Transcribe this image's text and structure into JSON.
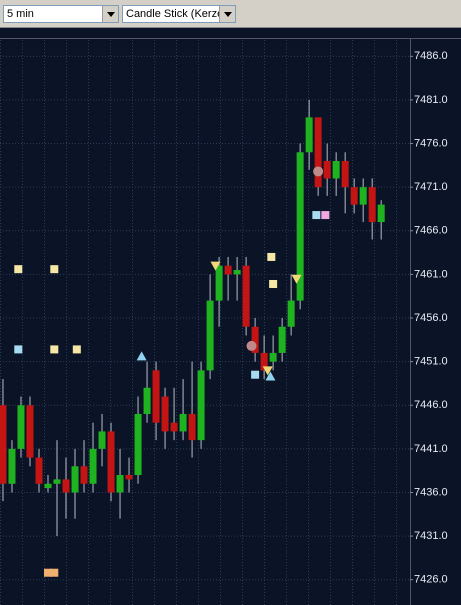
{
  "toolbar": {
    "interval": "5 min",
    "chart_style": "Candle Stick (Kerze"
  },
  "chart_data": {
    "type": "candlestick",
    "open": [
      7446,
      7437,
      7441,
      7446,
      7440,
      7436.5,
      7437,
      7437.5,
      7436,
      7439,
      7437,
      7441,
      7443,
      7436,
      7438,
      7438,
      7445,
      7450,
      7447,
      7444,
      7443,
      7445,
      7442,
      7450,
      7458,
      7462,
      7461,
      7462,
      7455,
      7452,
      7451,
      7452,
      7455,
      7458,
      7475,
      7479,
      7474,
      7472,
      7474,
      7471,
      7469,
      7471,
      7467
    ],
    "high": [
      7449,
      7442,
      7447,
      7447,
      7441,
      7438,
      7442,
      7440,
      7441,
      7442,
      7444,
      7445,
      7444,
      7441,
      7440,
      7447,
      7451,
      7451,
      7448,
      7448,
      7449,
      7451,
      7451,
      7461,
      7463,
      7463,
      7463,
      7463,
      7456,
      7454,
      7454,
      7456,
      7461,
      7476,
      7481,
      7479,
      7476,
      7475,
      7475,
      7472,
      7472,
      7472,
      7469.5
    ],
    "low": [
      7435,
      7436,
      7440,
      7439,
      7436,
      7436,
      7431,
      7433,
      7433,
      7436,
      7436,
      7439,
      7435,
      7433,
      7436,
      7437,
      7444,
      7442,
      7441,
      7442,
      7442,
      7440,
      7441,
      7449,
      7455,
      7458,
      7458,
      7454,
      7451,
      7449,
      7450,
      7451,
      7454,
      7457,
      7473,
      7470,
      7470,
      7470,
      7468,
      7468,
      7467,
      7465,
      7465
    ],
    "close": [
      7437,
      7441,
      7446,
      7440,
      7437,
      7437,
      7437.5,
      7436,
      7439,
      7437,
      7441,
      7443,
      7436,
      7438,
      7437.5,
      7445,
      7448,
      7444,
      7443,
      7443,
      7445,
      7442,
      7450,
      7458,
      7462,
      7461,
      7461.5,
      7455,
      7452,
      7450,
      7452,
      7455,
      7458,
      7475,
      7479,
      7471,
      7472,
      7474,
      7471,
      7469,
      7471,
      7467,
      7469
    ],
    "up_color": "#1fb41f",
    "down_color": "#c41414",
    "wick_color": "#b8bcc8",
    "markers": [
      {
        "shape": "square",
        "color": "#f6e7a6",
        "x": 1.7,
        "y": 7461.6
      },
      {
        "shape": "square",
        "color": "#f6e7a6",
        "x": 5.7,
        "y": 7461.6
      },
      {
        "shape": "square",
        "color": "#a6dcf2",
        "x": 1.7,
        "y": 7452.4
      },
      {
        "shape": "square",
        "color": "#f6e7a6",
        "x": 5.7,
        "y": 7452.4
      },
      {
        "shape": "square",
        "color": "#f6e7a6",
        "x": 8.2,
        "y": 7452.4
      },
      {
        "shape": "triangle-up",
        "color": "#8fd3f0",
        "x": 15.4,
        "y": 7451.6
      },
      {
        "shape": "triangle-down",
        "color": "#f0d878",
        "x": 23.6,
        "y": 7462.0
      },
      {
        "shape": "square",
        "color": "#f6e7a6",
        "x": 29.8,
        "y": 7463.0
      },
      {
        "shape": "square",
        "color": "#f6e7a6",
        "x": 30.0,
        "y": 7459.9
      },
      {
        "shape": "circle",
        "color": "#c08a8a",
        "x": 27.6,
        "y": 7452.8
      },
      {
        "shape": "square",
        "color": "#a6dcf2",
        "x": 28.0,
        "y": 7449.5
      },
      {
        "shape": "triangle-down",
        "color": "#f0d878",
        "x": 29.4,
        "y": 7450.0
      },
      {
        "shape": "triangle-up",
        "color": "#8fd3f0",
        "x": 29.7,
        "y": 7449.3
      },
      {
        "shape": "triangle-down",
        "color": "#f0d878",
        "x": 32.6,
        "y": 7460.5
      },
      {
        "shape": "circle",
        "color": "#c08a8a",
        "x": 35.0,
        "y": 7472.8
      },
      {
        "shape": "square",
        "color": "#a6dcf2",
        "x": 34.8,
        "y": 7467.8
      },
      {
        "shape": "square",
        "color": "#f0a8e0",
        "x": 35.8,
        "y": 7467.8
      },
      {
        "shape": "square",
        "color": "#f0b070",
        "x": 5.0,
        "y": 7426.8
      },
      {
        "shape": "square",
        "color": "#f0b070",
        "x": 5.7,
        "y": 7426.8
      }
    ],
    "xlim": [
      -0.33,
      45.2
    ],
    "ylim": [
      7423.1,
      7488.1
    ],
    "yticks": [
      {
        "value": 7486,
        "label": "7486.0"
      },
      {
        "value": 7481,
        "label": "7481.0"
      },
      {
        "value": 7476,
        "label": "7476.0"
      },
      {
        "value": 7471,
        "label": "7471.0"
      },
      {
        "value": 7466,
        "label": "7466.0"
      },
      {
        "value": 7461,
        "label": "7461.0"
      },
      {
        "value": 7456,
        "label": "7456.0"
      },
      {
        "value": 7451,
        "label": "7451.0"
      },
      {
        "value": 7446,
        "label": "7446.0"
      },
      {
        "value": 7441,
        "label": "7441.0"
      },
      {
        "value": 7436,
        "label": "7436.0"
      },
      {
        "value": 7431,
        "label": "7431.0"
      },
      {
        "value": 7426,
        "label": "7426.0"
      }
    ],
    "grid": true
  }
}
